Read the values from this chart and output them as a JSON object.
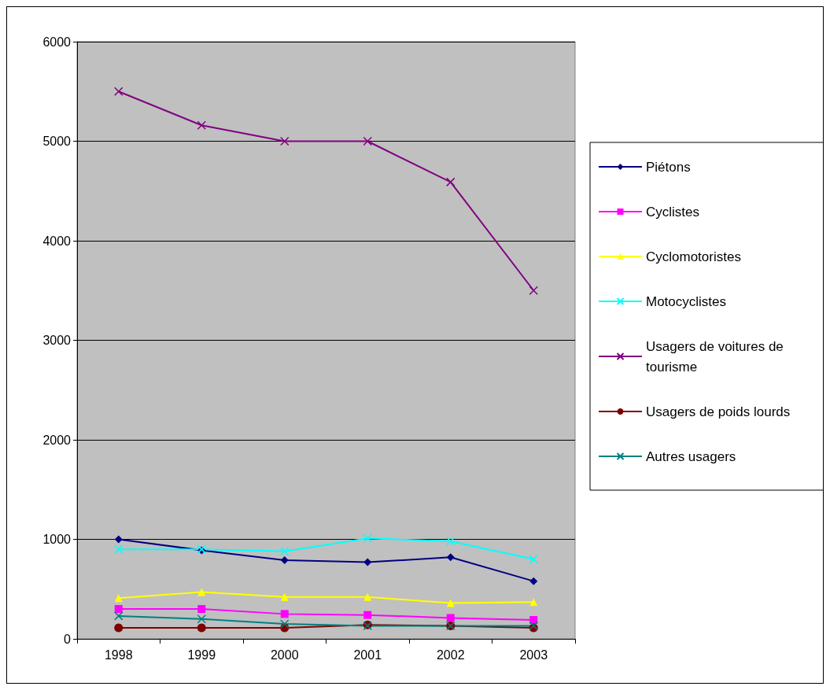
{
  "chart_data": {
    "type": "line",
    "categories": [
      "1998",
      "1999",
      "2000",
      "2001",
      "2002",
      "2003"
    ],
    "series": [
      {
        "name": "Piétons",
        "color": "#000080",
        "marker": "diamond",
        "values": [
          1000,
          890,
          790,
          770,
          820,
          580
        ]
      },
      {
        "name": "Cyclistes",
        "color": "#ff00ff",
        "marker": "square",
        "values": [
          300,
          300,
          250,
          240,
          210,
          190
        ]
      },
      {
        "name": "Cyclomotoristes",
        "color": "#ffff00",
        "marker": "triangle",
        "values": [
          410,
          470,
          420,
          420,
          360,
          370
        ]
      },
      {
        "name": "Motocyclistes",
        "color": "#00ffff",
        "marker": "cross",
        "values": [
          900,
          900,
          880,
          1010,
          980,
          800
        ]
      },
      {
        "name": "Usagers de voitures de tourisme",
        "color": "#800080",
        "marker": "cross",
        "values": [
          5500,
          5160,
          5000,
          5000,
          4590,
          3500
        ]
      },
      {
        "name": "Usagers de poids lourds",
        "color": "#800000",
        "marker": "circle",
        "values": [
          110,
          110,
          110,
          140,
          130,
          110
        ]
      },
      {
        "name": "Autres usagers",
        "color": "#008080",
        "marker": "cross",
        "values": [
          230,
          200,
          150,
          130,
          130,
          130
        ]
      }
    ],
    "ylim": [
      0,
      6000
    ],
    "yticks": [
      0,
      {
        "value": 1000,
        "label": "1000"
      },
      {
        "value": 2000,
        "label": "2000"
      },
      {
        "value": 3000,
        "label": "3000"
      },
      {
        "value": 4000,
        "label": "4000"
      },
      {
        "value": 5000,
        "label": "5000"
      },
      {
        "value": 6000,
        "label": "6000"
      }
    ],
    "grid": "y",
    "legend": "right"
  }
}
